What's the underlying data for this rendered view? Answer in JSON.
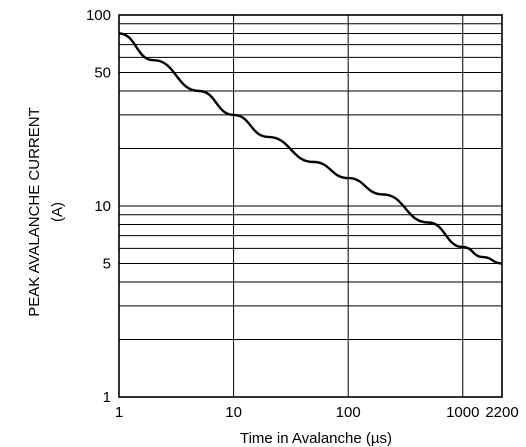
{
  "chart_data": {
    "type": "line",
    "xscale": "log",
    "yscale": "log",
    "xlim": [
      1,
      2200
    ],
    "ylim": [
      1,
      100
    ],
    "grid": true,
    "xlabel": "Time in Avalanche (µs)",
    "ylabel": "PEAK AVALANCHE CURRENT",
    "ylabel_unit": "(A)",
    "x_ticks": [
      1,
      10,
      100,
      1000,
      2200
    ],
    "x_tick_labels": [
      "1",
      "10",
      "100",
      "1000",
      "2200"
    ],
    "y_ticks": [
      1,
      5,
      10,
      50,
      100
    ],
    "y_tick_labels": [
      "1",
      "5",
      "10",
      "50",
      "100"
    ],
    "x_grid": [
      1,
      10,
      100,
      1000
    ],
    "y_grid": [
      2,
      3,
      4,
      5,
      6,
      7,
      8,
      9,
      10,
      20,
      30,
      40,
      50,
      60,
      70,
      80,
      90
    ],
    "series": [
      {
        "x": [
          1,
          2,
          5,
          10,
          20,
          50,
          100,
          200,
          500,
          1000,
          1500,
          2200
        ],
        "y": [
          80,
          58,
          40,
          30,
          23,
          17,
          14,
          11.5,
          8.2,
          6.1,
          5.4,
          5.0
        ]
      }
    ]
  }
}
